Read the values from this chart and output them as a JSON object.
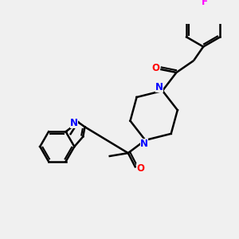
{
  "bg_color": "#f0f0f0",
  "bond_color": "#000000",
  "N_color": "#0000ff",
  "O_color": "#ff0000",
  "F_color": "#ff00ff",
  "linewidth": 1.8,
  "figsize": [
    3.0,
    3.0
  ],
  "dpi": 100,
  "xlim": [
    0,
    10
  ],
  "ylim": [
    0,
    10
  ]
}
